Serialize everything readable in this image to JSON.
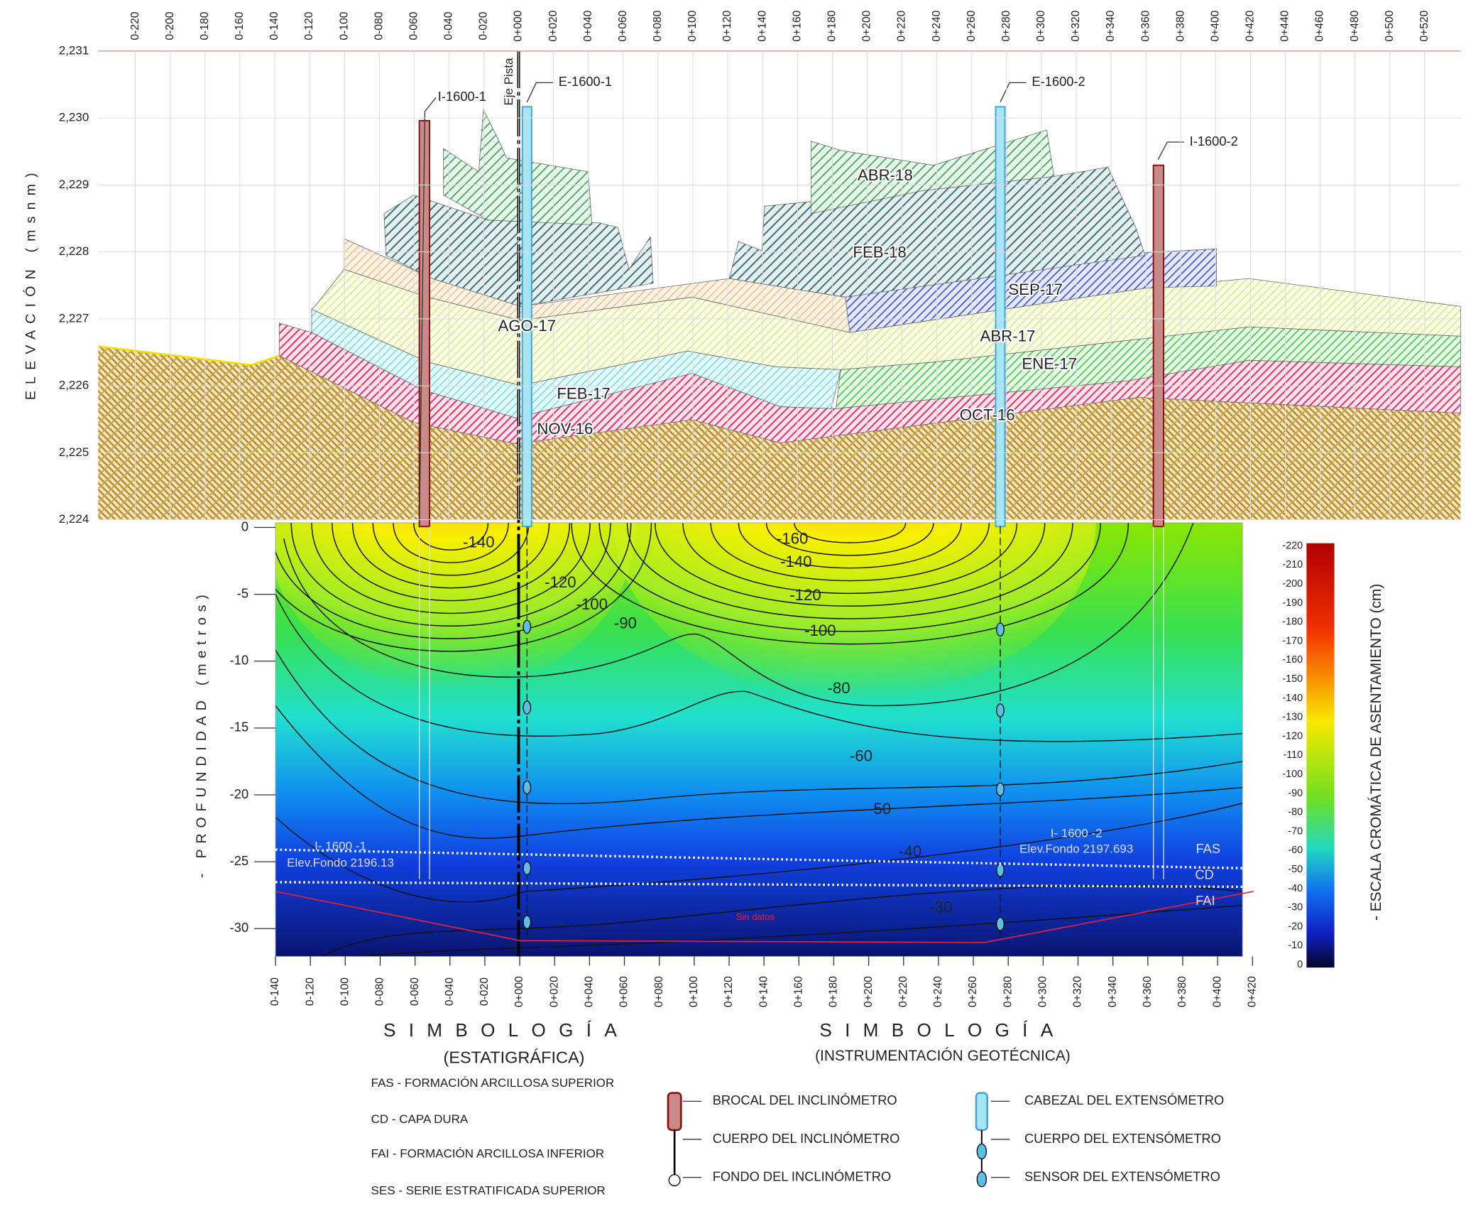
{
  "top_axis": {
    "stations": [
      "0-220",
      "0-200",
      "0-180",
      "0-160",
      "0-140",
      "0-120",
      "0-100",
      "0-080",
      "0-060",
      "0-040",
      "0-020",
      "0+000",
      "0+020",
      "0+040",
      "0+060",
      "0+080",
      "0+100",
      "0+120",
      "0+140",
      "0+160",
      "0+180",
      "0+200",
      "0+220",
      "0+240",
      "0+260",
      "0+280",
      "0+300",
      "0+320",
      "0+340",
      "0+360",
      "0+380",
      "0+400",
      "0+420",
      "0+440",
      "0+460",
      "0+480",
      "0+500",
      "0+520"
    ]
  },
  "elevation_axis": {
    "title": "ELEVACIÓN (msnm)",
    "ticks": [
      "2,231",
      "2,230",
      "2,229",
      "2,228",
      "2,227",
      "2,226",
      "2,225",
      "2,224"
    ]
  },
  "depth_axis": {
    "title": "- PROFUNDIDAD (metros)",
    "ticks": [
      "0",
      "-5",
      "-10",
      "-15",
      "-20",
      "-25",
      "-30"
    ]
  },
  "bottom_axis": {
    "stations": [
      "0-140",
      "0-120",
      "0-100",
      "0-080",
      "0-060",
      "0-040",
      "0-020",
      "0+000",
      "0+020",
      "0+040",
      "0+060",
      "0+080",
      "0+100",
      "0+120",
      "0+140",
      "0+160",
      "0+180",
      "0+200",
      "0+220",
      "0+240",
      "0+260",
      "0+280",
      "0+300",
      "0+320",
      "0+340",
      "0+360",
      "0+380",
      "0+400",
      "0+420"
    ]
  },
  "axis_line": {
    "label": "Eje Pista"
  },
  "instruments": [
    {
      "label": "I-1600-1"
    },
    {
      "label": "E-1600-1"
    },
    {
      "label": "E-1600-2"
    },
    {
      "label": "I-1600-2"
    }
  ],
  "layers": [
    {
      "label": "ABR-18"
    },
    {
      "label": "FEB-18"
    },
    {
      "label": "SEP-17"
    },
    {
      "label": "AGO-17"
    },
    {
      "label": "ABR-17"
    },
    {
      "label": "ENE-17"
    },
    {
      "label": "FEB-17"
    },
    {
      "label": "OCT-16"
    },
    {
      "label": "NOV-16"
    }
  ],
  "contour_labels": [
    "-140",
    "-120",
    "-100",
    "-90",
    "-160",
    "-140",
    "-120",
    "-100",
    "-80",
    "-60",
    "-50",
    "-40",
    "-30"
  ],
  "boreholes": [
    {
      "name": "I- 1600 -1",
      "bottom": "Elev.Fondo 2196.13"
    },
    {
      "name": "I- 1600 -2",
      "bottom": "Elev.Fondo 2197.693"
    }
  ],
  "strata_markers": [
    "FAS",
    "CD",
    "FAI"
  ],
  "no_data": "Sin datos",
  "color_scale": {
    "title": "- ESCALA CROMÁTICA DE ASENTAMIENTO (cm)",
    "ticks": [
      "-220",
      "-210",
      "-200",
      "-190",
      "-180",
      "-170",
      "-160",
      "-150",
      "-140",
      "-130",
      "-120",
      "-110",
      "-100",
      "-90",
      "-80",
      "-70",
      "-60",
      "-50",
      "-40",
      "-30",
      "-20",
      "-10",
      "0"
    ]
  },
  "legend_stratigraphy": {
    "title": "SIMBOLOGÍA",
    "subtitle": "(ESTATIGRÁFICA)",
    "items": [
      "FAS - FORMACIÓN ARCILLOSA SUPERIOR",
      "CD - CAPA DURA",
      "FAI - FORMACIÓN ARCILLOSA INFERIOR",
      "SES - SERIE ESTRATIFICADA SUPERIOR"
    ]
  },
  "legend_instrumentation": {
    "title": "SIMBOLOGÍA",
    "subtitle": "(INSTRUMENTACIÓN GEOTÉCNICA)",
    "items": [
      "BROCAL DEL INCLINÓMETRO",
      "CUERPO DEL INCLINÓMETRO",
      "FONDO DEL INCLINÓMETRO",
      "CABEZAL DEL EXTENSÓMETRO",
      "CUERPO DEL EXTENSÓMETRO",
      "SENSOR DEL EXTENSÓMETRO"
    ]
  }
}
